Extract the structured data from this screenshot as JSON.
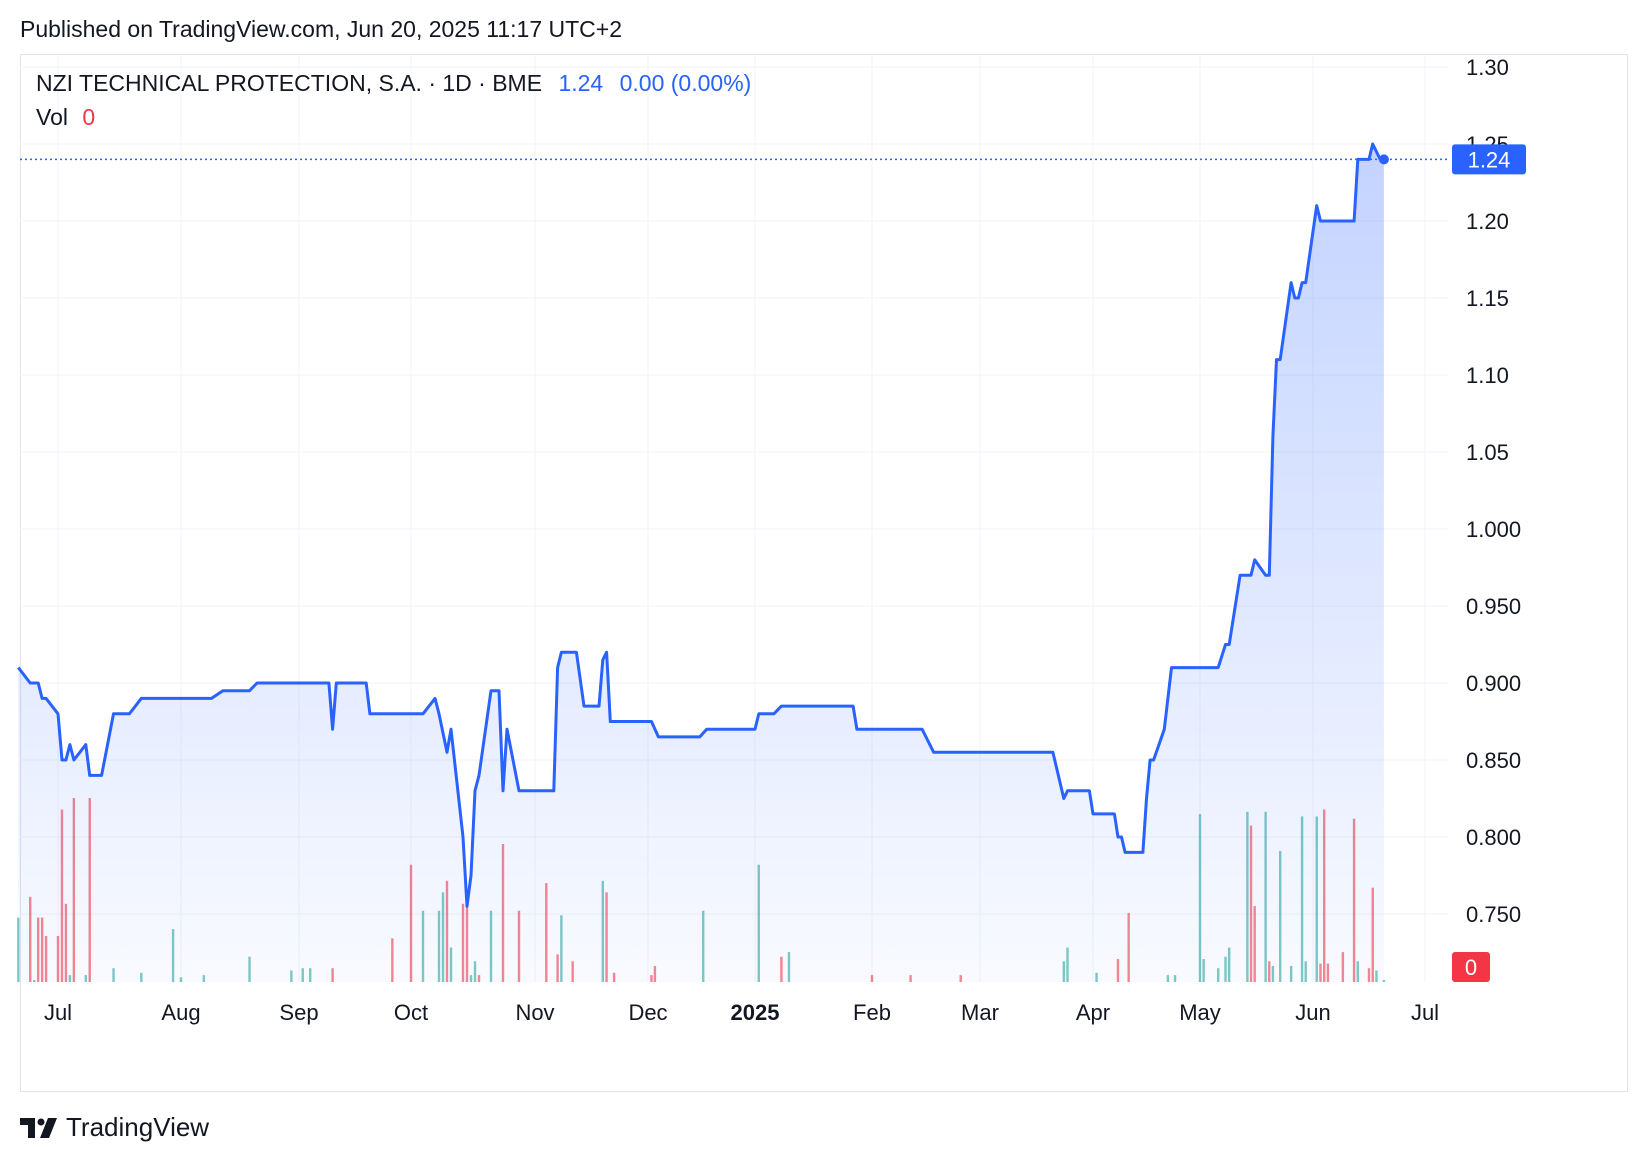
{
  "header": {
    "published": "Published on TradingView.com, Jun 20, 2025 11:17 UTC+2"
  },
  "legend": {
    "symbol": "NZI TECHNICAL PROTECTION, S.A. · 1D · BME",
    "last": "1.24",
    "change": "0.00 (0.00%)",
    "vol_label": "Vol",
    "vol_value": "0"
  },
  "brand": {
    "name": "TradingView"
  },
  "colors": {
    "line": "#2962ff",
    "up": "#26a69a",
    "down": "#f23645",
    "grid": "#f0f3fa"
  },
  "chart_data": {
    "type": "area",
    "y_ticks": [
      "1.30",
      "1.25",
      "1.20",
      "1.15",
      "1.10",
      "1.05",
      "1.000",
      "0.950",
      "0.900",
      "0.850",
      "0.800",
      "0.750"
    ],
    "ylim": [
      0.71,
      1.31
    ],
    "x_ticks": [
      "Jul",
      "Aug",
      "Sep",
      "Oct",
      "Nov",
      "Dec",
      "2025",
      "Feb",
      "Mar",
      "Apr",
      "May",
      "Jun",
      "Jul"
    ],
    "last_price_label": "1.24",
    "last_volume_label": "0",
    "series": [
      {
        "name": "NZI TECHNICAL PROTECTION, S.A.",
        "points": [
          [
            "2024-06-21",
            0.91
          ],
          [
            "2024-06-24",
            0.9
          ],
          [
            "2024-06-26",
            0.9
          ],
          [
            "2024-06-27",
            0.89
          ],
          [
            "2024-06-28",
            0.89
          ],
          [
            "2024-07-01",
            0.88
          ],
          [
            "2024-07-02",
            0.85
          ],
          [
            "2024-07-03",
            0.85
          ],
          [
            "2024-07-04",
            0.86
          ],
          [
            "2024-07-05",
            0.85
          ],
          [
            "2024-07-08",
            0.86
          ],
          [
            "2024-07-09",
            0.84
          ],
          [
            "2024-07-12",
            0.84
          ],
          [
            "2024-07-15",
            0.88
          ],
          [
            "2024-07-19",
            0.88
          ],
          [
            "2024-07-22",
            0.89
          ],
          [
            "2024-08-09",
            0.89
          ],
          [
            "2024-08-12",
            0.895
          ],
          [
            "2024-08-19",
            0.895
          ],
          [
            "2024-08-21",
            0.9
          ],
          [
            "2024-09-09",
            0.9
          ],
          [
            "2024-09-10",
            0.87
          ],
          [
            "2024-09-11",
            0.9
          ],
          [
            "2024-09-19",
            0.9
          ],
          [
            "2024-09-20",
            0.88
          ],
          [
            "2024-10-04",
            0.88
          ],
          [
            "2024-10-07",
            0.89
          ],
          [
            "2024-10-08",
            0.88
          ],
          [
            "2024-10-10",
            0.855
          ],
          [
            "2024-10-11",
            0.87
          ],
          [
            "2024-10-14",
            0.8
          ],
          [
            "2024-10-15",
            0.755
          ],
          [
            "2024-10-16",
            0.775
          ],
          [
            "2024-10-17",
            0.83
          ],
          [
            "2024-10-18",
            0.84
          ],
          [
            "2024-10-21",
            0.895
          ],
          [
            "2024-10-23",
            0.895
          ],
          [
            "2024-10-24",
            0.83
          ],
          [
            "2024-10-25",
            0.87
          ],
          [
            "2024-10-28",
            0.83
          ],
          [
            "2024-11-06",
            0.83
          ],
          [
            "2024-11-07",
            0.91
          ],
          [
            "2024-11-08",
            0.92
          ],
          [
            "2024-11-12",
            0.92
          ],
          [
            "2024-11-14",
            0.885
          ],
          [
            "2024-11-18",
            0.885
          ],
          [
            "2024-11-19",
            0.915
          ],
          [
            "2024-11-20",
            0.92
          ],
          [
            "2024-11-21",
            0.875
          ],
          [
            "2024-12-02",
            0.875
          ],
          [
            "2024-12-04",
            0.865
          ],
          [
            "2024-12-16",
            0.865
          ],
          [
            "2024-12-18",
            0.87
          ],
          [
            "2025-01-01",
            0.87
          ],
          [
            "2025-01-02",
            0.88
          ],
          [
            "2025-01-06",
            0.88
          ],
          [
            "2025-01-08",
            0.885
          ],
          [
            "2025-01-27",
            0.885
          ],
          [
            "2025-01-28",
            0.87
          ],
          [
            "2025-02-14",
            0.87
          ],
          [
            "2025-02-17",
            0.855
          ],
          [
            "2025-03-21",
            0.855
          ],
          [
            "2025-03-24",
            0.825
          ],
          [
            "2025-03-25",
            0.83
          ],
          [
            "2025-03-31",
            0.83
          ],
          [
            "2025-04-01",
            0.815
          ],
          [
            "2025-04-07",
            0.815
          ],
          [
            "2025-04-08",
            0.8
          ],
          [
            "2025-04-09",
            0.8
          ],
          [
            "2025-04-10",
            0.79
          ],
          [
            "2025-04-15",
            0.79
          ],
          [
            "2025-04-16",
            0.825
          ],
          [
            "2025-04-17",
            0.85
          ],
          [
            "2025-04-18",
            0.85
          ],
          [
            "2025-04-21",
            0.87
          ],
          [
            "2025-04-23",
            0.91
          ],
          [
            "2025-05-06",
            0.91
          ],
          [
            "2025-05-08",
            0.925
          ],
          [
            "2025-05-09",
            0.925
          ],
          [
            "2025-05-12",
            0.97
          ],
          [
            "2025-05-15",
            0.97
          ],
          [
            "2025-05-16",
            0.98
          ],
          [
            "2025-05-19",
            0.97
          ],
          [
            "2025-05-20",
            0.97
          ],
          [
            "2025-05-21",
            1.06
          ],
          [
            "2025-05-22",
            1.11
          ],
          [
            "2025-05-23",
            1.11
          ],
          [
            "2025-05-26",
            1.16
          ],
          [
            "2025-05-27",
            1.15
          ],
          [
            "2025-05-28",
            1.15
          ],
          [
            "2025-05-29",
            1.16
          ],
          [
            "2025-05-30",
            1.16
          ],
          [
            "2025-06-02",
            1.21
          ],
          [
            "2025-06-03",
            1.2
          ],
          [
            "2025-06-12",
            1.2
          ],
          [
            "2025-06-13",
            1.24
          ],
          [
            "2025-06-16",
            1.24
          ],
          [
            "2025-06-17",
            1.25
          ],
          [
            "2025-06-19",
            1.24
          ],
          [
            "2025-06-20",
            1.24
          ]
        ]
      }
    ],
    "volume": [
      [
        "2024-06-21",
        0.28,
        "up"
      ],
      [
        "2024-06-24",
        0.37,
        "down"
      ],
      [
        "2024-06-25",
        0.0,
        "up"
      ],
      [
        "2024-06-26",
        0.28,
        "down"
      ],
      [
        "2024-06-27",
        0.28,
        "down"
      ],
      [
        "2024-06-28",
        0.2,
        "down"
      ],
      [
        "2024-07-01",
        0.2,
        "down"
      ],
      [
        "2024-07-02",
        0.75,
        "down"
      ],
      [
        "2024-07-03",
        0.34,
        "down"
      ],
      [
        "2024-07-04",
        0.03,
        "up"
      ],
      [
        "2024-07-05",
        0.8,
        "down"
      ],
      [
        "2024-07-08",
        0.03,
        "up"
      ],
      [
        "2024-07-09",
        0.8,
        "down"
      ],
      [
        "2024-07-15",
        0.06,
        "up"
      ],
      [
        "2024-07-22",
        0.04,
        "up"
      ],
      [
        "2024-07-30",
        0.23,
        "up"
      ],
      [
        "2024-08-01",
        0.02,
        "up"
      ],
      [
        "2024-08-07",
        0.03,
        "up"
      ],
      [
        "2024-08-19",
        0.11,
        "up"
      ],
      [
        "2024-08-30",
        0.05,
        "up"
      ],
      [
        "2024-09-02",
        0.06,
        "up"
      ],
      [
        "2024-09-04",
        0.06,
        "up"
      ],
      [
        "2024-09-10",
        0.06,
        "down"
      ],
      [
        "2024-09-26",
        0.19,
        "down"
      ],
      [
        "2024-10-01",
        0.51,
        "down"
      ],
      [
        "2024-10-04",
        0.31,
        "up"
      ],
      [
        "2024-10-08",
        0.31,
        "up"
      ],
      [
        "2024-10-09",
        0.39,
        "up"
      ],
      [
        "2024-10-10",
        0.44,
        "down"
      ],
      [
        "2024-10-11",
        0.15,
        "up"
      ],
      [
        "2024-10-14",
        0.34,
        "down"
      ],
      [
        "2024-10-15",
        0.34,
        "down"
      ],
      [
        "2024-10-16",
        0.03,
        "up"
      ],
      [
        "2024-10-17",
        0.09,
        "up"
      ],
      [
        "2024-10-18",
        0.03,
        "down"
      ],
      [
        "2024-10-21",
        0.31,
        "up"
      ],
      [
        "2024-10-24",
        0.6,
        "down"
      ],
      [
        "2024-10-28",
        0.31,
        "down"
      ],
      [
        "2024-11-04",
        0.43,
        "down"
      ],
      [
        "2024-11-07",
        0.12,
        "down"
      ],
      [
        "2024-11-08",
        0.29,
        "up"
      ],
      [
        "2024-11-11",
        0.09,
        "down"
      ],
      [
        "2024-11-19",
        0.44,
        "up"
      ],
      [
        "2024-11-20",
        0.39,
        "down"
      ],
      [
        "2024-11-22",
        0.04,
        "down"
      ],
      [
        "2024-12-02",
        0.03,
        "down"
      ],
      [
        "2024-12-03",
        0.07,
        "down"
      ],
      [
        "2024-12-17",
        0.31,
        "up"
      ],
      [
        "2025-01-02",
        0.51,
        "up"
      ],
      [
        "2025-01-08",
        0.11,
        "down"
      ],
      [
        "2025-01-10",
        0.13,
        "up"
      ],
      [
        "2025-02-01",
        0.03,
        "down"
      ],
      [
        "2025-02-11",
        0.03,
        "down"
      ],
      [
        "2025-02-24",
        0.03,
        "down"
      ],
      [
        "2025-03-24",
        0.09,
        "up"
      ],
      [
        "2025-03-25",
        0.15,
        "up"
      ],
      [
        "2025-04-02",
        0.04,
        "up"
      ],
      [
        "2025-04-08",
        0.1,
        "down"
      ],
      [
        "2025-04-11",
        0.3,
        "down"
      ],
      [
        "2025-04-22",
        0.03,
        "up"
      ],
      [
        "2025-04-24",
        0.03,
        "up"
      ],
      [
        "2025-05-01",
        0.73,
        "up"
      ],
      [
        "2025-05-02",
        0.1,
        "up"
      ],
      [
        "2025-05-06",
        0.06,
        "up"
      ],
      [
        "2025-05-08",
        0.11,
        "up"
      ],
      [
        "2025-05-09",
        0.15,
        "up"
      ],
      [
        "2025-05-14",
        0.74,
        "up"
      ],
      [
        "2025-05-15",
        0.68,
        "down"
      ],
      [
        "2025-05-16",
        0.33,
        "down"
      ],
      [
        "2025-05-19",
        0.74,
        "up"
      ],
      [
        "2025-05-20",
        0.09,
        "down"
      ],
      [
        "2025-05-21",
        0.07,
        "up"
      ],
      [
        "2025-05-23",
        0.57,
        "up"
      ],
      [
        "2025-05-26",
        0.07,
        "up"
      ],
      [
        "2025-05-29",
        0.72,
        "up"
      ],
      [
        "2025-05-30",
        0.09,
        "up"
      ],
      [
        "2025-06-02",
        0.72,
        "up"
      ],
      [
        "2025-06-03",
        0.08,
        "down"
      ],
      [
        "2025-06-04",
        0.75,
        "down"
      ],
      [
        "2025-06-05",
        0.08,
        "down"
      ],
      [
        "2025-06-09",
        0.13,
        "down"
      ],
      [
        "2025-06-12",
        0.71,
        "down"
      ],
      [
        "2025-06-13",
        0.09,
        "up"
      ],
      [
        "2025-06-16",
        0.06,
        "down"
      ],
      [
        "2025-06-17",
        0.41,
        "down"
      ],
      [
        "2025-06-18",
        0.05,
        "up"
      ],
      [
        "2025-06-20",
        0.0,
        "up"
      ]
    ],
    "grid": true,
    "crosshair_price_line": 1.24
  }
}
